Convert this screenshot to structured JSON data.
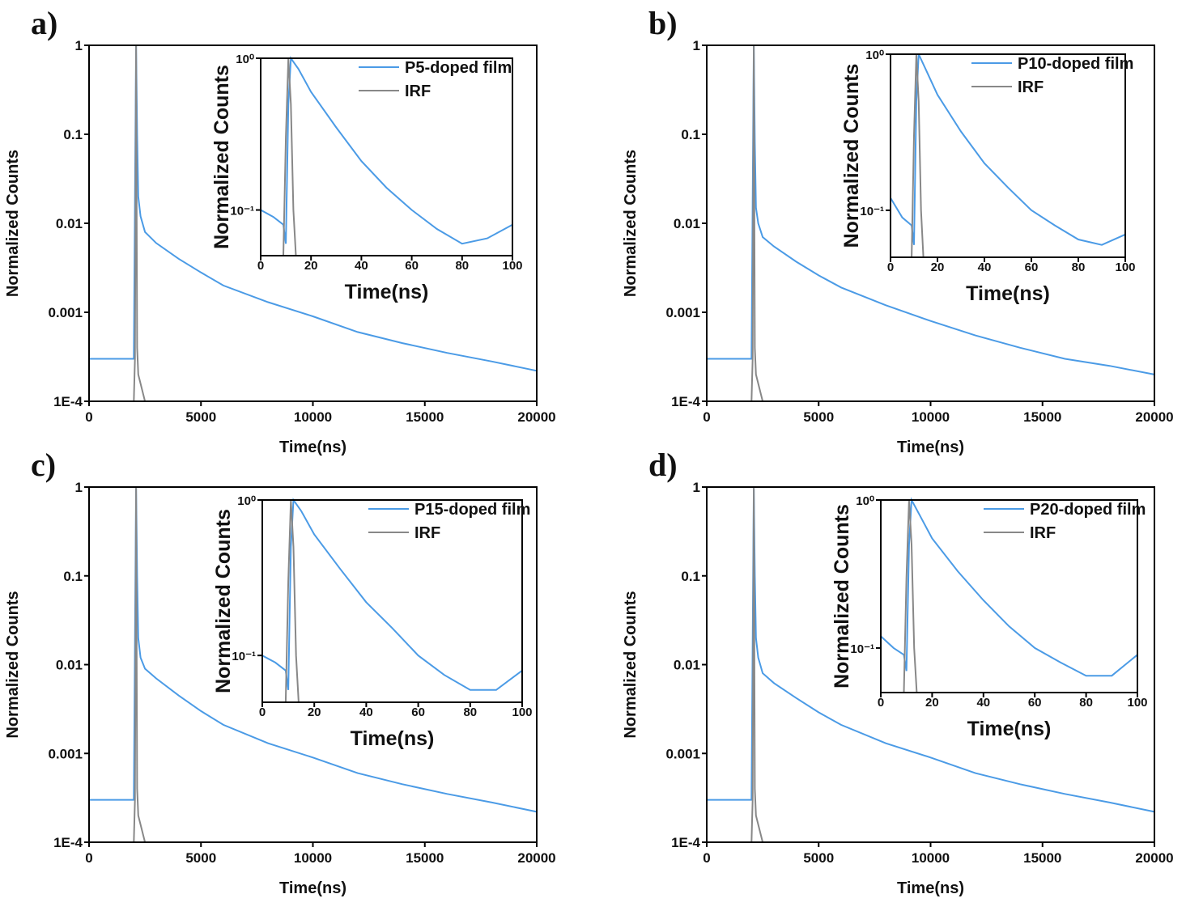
{
  "chart_data": [
    {
      "type": "line",
      "panel_label": "a)",
      "x_label": "Time(ns)",
      "y_label": "Normalized Counts",
      "log_y": true,
      "xlim": [
        0,
        20000
      ],
      "xticks": [
        0,
        5000,
        10000,
        15000,
        20000
      ],
      "ylim": [
        0.0001,
        1
      ],
      "yticks": [
        {
          "value": 0.0001,
          "label": "1E-4"
        },
        0.001,
        0.01,
        0.1,
        1
      ],
      "series": [
        {
          "color": "#4b9be6",
          "x": [
            0,
            1000,
            2000,
            2100,
            2150,
            2200,
            2300,
            2500,
            3000,
            4000,
            5000,
            6000,
            8000,
            10000,
            12000,
            14000,
            16000,
            18000,
            20000
          ],
          "values": [
            0.0003,
            0.0003,
            0.0003,
            1,
            0.1,
            0.02,
            0.012,
            0.008,
            0.006,
            0.004,
            0.0028,
            0.002,
            0.0013,
            0.0009,
            0.0006,
            0.00045,
            0.00035,
            0.00028,
            0.00022
          ]
        },
        {
          "color": "#888888",
          "x": [
            2000,
            2050,
            2100,
            2150,
            2200,
            2500
          ],
          "values": [
            0.0001,
            0.0003,
            1,
            0.0004,
            0.0002,
            0.0001
          ]
        }
      ]
    },
    {
      "type": "line",
      "x_label": "Time(ns)",
      "y_label": "Normalized Counts",
      "log_y": true,
      "legend": "upper right",
      "xlim": [
        0,
        100
      ],
      "xticks": [
        0,
        20,
        40,
        60,
        80,
        100
      ],
      "ylim": [
        0.05,
        1
      ],
      "yticks": [
        {
          "value": 0.1,
          "label": "10⁻¹"
        },
        {
          "value": 1,
          "label": "10⁰"
        }
      ],
      "series": [
        {
          "name": "P5-doped film",
          "color": "#4b9be6",
          "x": [
            0,
            5,
            9,
            10,
            11,
            12,
            15,
            20,
            30,
            40,
            50,
            60,
            70,
            80,
            90,
            100
          ],
          "values": [
            0.1,
            0.09,
            0.08,
            0.06,
            0.5,
            1,
            0.85,
            0.6,
            0.35,
            0.21,
            0.14,
            0.1,
            0.075,
            0.06,
            0.065,
            0.08
          ]
        },
        {
          "name": "IRF",
          "color": "#888888",
          "x": [
            0,
            9,
            10,
            11,
            12,
            13,
            14,
            100
          ],
          "values": [
            0.05,
            0.05,
            0.3,
            1,
            0.5,
            0.1,
            0.05,
            0.05
          ]
        }
      ]
    },
    {
      "type": "line",
      "panel_label": "b)",
      "x_label": "Time(ns)",
      "y_label": "Normalized Counts",
      "log_y": true,
      "xlim": [
        0,
        20000
      ],
      "xticks": [
        0,
        5000,
        10000,
        15000,
        20000
      ],
      "ylim": [
        0.0001,
        1
      ],
      "yticks": [
        {
          "value": 0.0001,
          "label": "1E-4"
        },
        0.001,
        0.01,
        0.1,
        1
      ],
      "series": [
        {
          "color": "#4b9be6",
          "x": [
            0,
            1000,
            2000,
            2100,
            2150,
            2200,
            2300,
            2500,
            3000,
            4000,
            5000,
            6000,
            8000,
            10000,
            12000,
            14000,
            16000,
            18000,
            20000
          ],
          "values": [
            0.0003,
            0.0003,
            0.0003,
            1,
            0.08,
            0.015,
            0.01,
            0.007,
            0.0055,
            0.0037,
            0.0026,
            0.0019,
            0.0012,
            0.0008,
            0.00055,
            0.0004,
            0.0003,
            0.00025,
            0.0002
          ]
        },
        {
          "color": "#888888",
          "x": [
            2000,
            2050,
            2100,
            2150,
            2200,
            2500
          ],
          "values": [
            0.0001,
            0.0003,
            1,
            0.0004,
            0.0002,
            0.0001
          ]
        }
      ]
    },
    {
      "type": "line",
      "x_label": "Time(ns)",
      "y_label": "Normalized Counts",
      "log_y": true,
      "legend": "upper right",
      "xlim": [
        0,
        100
      ],
      "xticks": [
        0,
        20,
        40,
        60,
        80,
        100
      ],
      "ylim": [
        0.05,
        1
      ],
      "yticks": [
        {
          "value": 0.1,
          "label": "10⁻¹"
        },
        {
          "value": 1,
          "label": "10⁰"
        }
      ],
      "series": [
        {
          "name": "P10-doped film",
          "color": "#4b9be6",
          "x": [
            0,
            5,
            9,
            10,
            11,
            12,
            15,
            20,
            30,
            40,
            50,
            60,
            70,
            80,
            90,
            100
          ],
          "values": [
            0.12,
            0.09,
            0.08,
            0.06,
            0.5,
            1,
            0.8,
            0.55,
            0.32,
            0.2,
            0.14,
            0.1,
            0.08,
            0.065,
            0.06,
            0.07
          ]
        },
        {
          "name": "IRF",
          "color": "#888888",
          "x": [
            0,
            9,
            10,
            11,
            12,
            13,
            14,
            100
          ],
          "values": [
            0.05,
            0.05,
            0.3,
            1,
            0.5,
            0.1,
            0.05,
            0.05
          ]
        }
      ]
    },
    {
      "type": "line",
      "panel_label": "c)",
      "x_label": "Time(ns)",
      "y_label": "Normalized Counts",
      "log_y": true,
      "xlim": [
        0,
        20000
      ],
      "xticks": [
        0,
        5000,
        10000,
        15000,
        20000
      ],
      "ylim": [
        0.0001,
        1
      ],
      "yticks": [
        {
          "value": 0.0001,
          "label": "1E-4"
        },
        0.001,
        0.01,
        0.1,
        1
      ],
      "series": [
        {
          "color": "#4b9be6",
          "x": [
            0,
            1000,
            2000,
            2100,
            2150,
            2200,
            2300,
            2500,
            3000,
            4000,
            5000,
            6000,
            8000,
            10000,
            12000,
            14000,
            16000,
            18000,
            20000
          ],
          "values": [
            0.0003,
            0.0003,
            0.0003,
            1,
            0.1,
            0.02,
            0.012,
            0.009,
            0.007,
            0.0045,
            0.003,
            0.0021,
            0.0013,
            0.0009,
            0.0006,
            0.00045,
            0.00035,
            0.00028,
            0.00022
          ]
        },
        {
          "color": "#888888",
          "x": [
            2000,
            2050,
            2100,
            2150,
            2200,
            2500
          ],
          "values": [
            0.0001,
            0.0003,
            1,
            0.0004,
            0.0002,
            0.0001
          ]
        }
      ]
    },
    {
      "type": "line",
      "x_label": "Time(ns)",
      "y_label": "Normalized Counts",
      "log_y": true,
      "legend": "upper right",
      "xlim": [
        0,
        100
      ],
      "xticks": [
        0,
        20,
        40,
        60,
        80,
        100
      ],
      "ylim": [
        0.05,
        1
      ],
      "yticks": [
        {
          "value": 0.1,
          "label": "10⁻¹"
        },
        {
          "value": 1,
          "label": "10⁰"
        }
      ],
      "series": [
        {
          "name": "P15-doped film",
          "color": "#4b9be6",
          "x": [
            0,
            5,
            9,
            10,
            11,
            12,
            15,
            20,
            30,
            40,
            50,
            60,
            70,
            80,
            90,
            100
          ],
          "values": [
            0.1,
            0.09,
            0.08,
            0.06,
            0.5,
            1,
            0.85,
            0.6,
            0.36,
            0.22,
            0.15,
            0.1,
            0.075,
            0.06,
            0.06,
            0.08
          ]
        },
        {
          "name": "IRF",
          "color": "#888888",
          "x": [
            0,
            9,
            10,
            11,
            12,
            13,
            14,
            100
          ],
          "values": [
            0.05,
            0.05,
            0.3,
            1,
            0.5,
            0.1,
            0.05,
            0.05
          ]
        }
      ]
    },
    {
      "type": "line",
      "panel_label": "d)",
      "x_label": "Time(ns)",
      "y_label": "Normalized Counts",
      "log_y": true,
      "xlim": [
        0,
        20000
      ],
      "xticks": [
        0,
        5000,
        10000,
        15000,
        20000
      ],
      "ylim": [
        0.0001,
        1
      ],
      "yticks": [
        {
          "value": 0.0001,
          "label": "1E-4"
        },
        0.001,
        0.01,
        0.1,
        1
      ],
      "series": [
        {
          "color": "#4b9be6",
          "x": [
            0,
            1000,
            2000,
            2100,
            2150,
            2200,
            2300,
            2500,
            3000,
            4000,
            5000,
            6000,
            8000,
            10000,
            12000,
            14000,
            16000,
            18000,
            20000
          ],
          "values": [
            0.0003,
            0.0003,
            0.0003,
            1,
            0.1,
            0.02,
            0.012,
            0.008,
            0.0062,
            0.0042,
            0.0029,
            0.0021,
            0.0013,
            0.0009,
            0.0006,
            0.00045,
            0.00035,
            0.00028,
            0.00022
          ]
        },
        {
          "color": "#888888",
          "x": [
            2000,
            2050,
            2100,
            2150,
            2200,
            2500
          ],
          "values": [
            0.0001,
            0.0003,
            1,
            0.0004,
            0.0002,
            0.0001
          ]
        }
      ]
    },
    {
      "type": "line",
      "x_label": "Time(ns)",
      "y_label": "Normalized Counts",
      "log_y": true,
      "legend": "upper right",
      "xlim": [
        0,
        100
      ],
      "xticks": [
        0,
        20,
        40,
        60,
        80,
        100
      ],
      "ylim": [
        0.05,
        1
      ],
      "yticks": [
        {
          "value": 0.1,
          "label": "10⁻¹"
        },
        {
          "value": 1,
          "label": "10⁰"
        }
      ],
      "series": [
        {
          "name": "P20-doped film",
          "color": "#4b9be6",
          "x": [
            0,
            5,
            9,
            10,
            11,
            12,
            15,
            20,
            30,
            40,
            50,
            60,
            70,
            80,
            90,
            100
          ],
          "values": [
            0.12,
            0.1,
            0.09,
            0.07,
            0.5,
            1,
            0.8,
            0.55,
            0.33,
            0.21,
            0.14,
            0.1,
            0.08,
            0.065,
            0.065,
            0.09
          ]
        },
        {
          "name": "IRF",
          "color": "#888888",
          "x": [
            0,
            9,
            10,
            11,
            12,
            13,
            14,
            100
          ],
          "values": [
            0.05,
            0.05,
            0.3,
            1,
            0.5,
            0.1,
            0.05,
            0.05
          ]
        }
      ]
    }
  ]
}
